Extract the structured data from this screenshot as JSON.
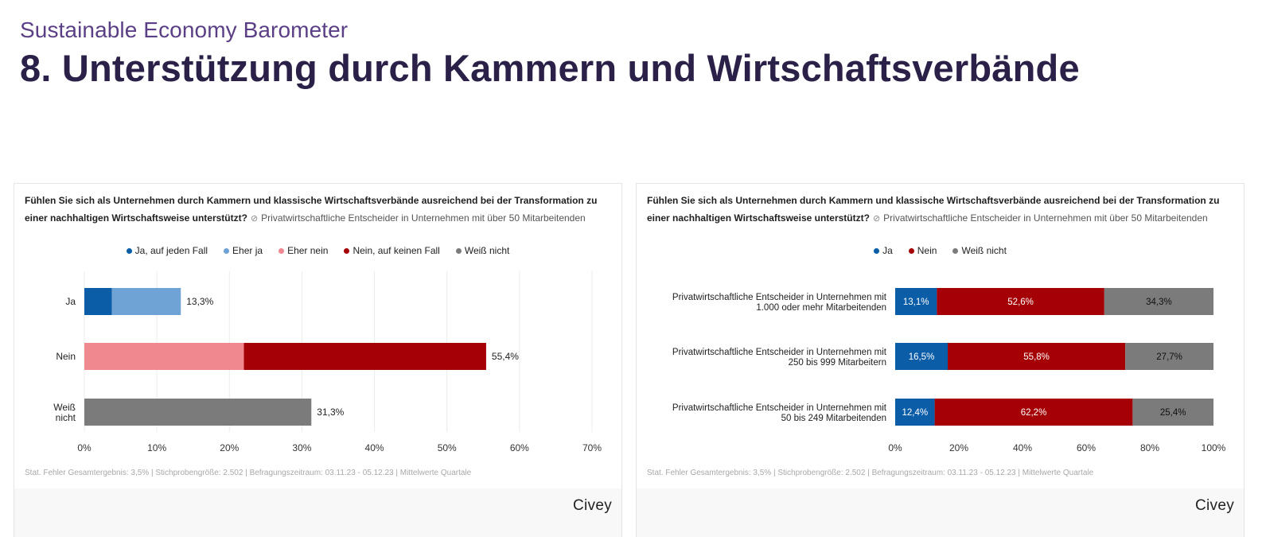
{
  "header": {
    "subtitle": "Sustainable Economy Barometer",
    "title": "8. Unterstützung durch Kammern und Wirtschaftsverbände"
  },
  "cards": [
    {
      "question": "Fühlen Sie sich als Unternehmen durch Kammern und klassische Wirtschaftsverbände ausreichend bei der Transformation zu einer nachhaltigen Wirtschaftsweise unterstützt?",
      "target_group": "Privatwirtschaftliche Entscheider in Unternehmen mit über 50 Mitarbeitenden",
      "footer": "Stat. Fehler Gesamtergebnis: 3,5% | Stichprobengröße: 2.502 | Befragungszeitraum: 03.11.23 - 05.12.23 | Mittelwerte Quartale",
      "brand": "Civey"
    },
    {
      "question": "Fühlen Sie sich als Unternehmen durch Kammern und klassische Wirtschaftsverbände ausreichend bei der Transformation zu einer nachhaltigen Wirtschaftsweise unterstützt?",
      "target_group": "Privatwirtschaftliche Entscheider in Unternehmen mit über 50 Mitarbeitenden",
      "footer": "Stat. Fehler Gesamtergebnis: 3,5% | Stichprobengröße: 2.502 | Befragungszeitraum: 03.11.23 - 05.12.23 | Mittelwerte Quartale",
      "brand": "Civey"
    }
  ],
  "chart_data": [
    {
      "type": "bar",
      "orientation": "horizontal",
      "stacked": true,
      "categories": [
        "Ja",
        "Nein",
        "Weiß nicht"
      ],
      "series": [
        {
          "name": "Ja, auf jeden Fall",
          "color": "#0b5da8",
          "values": [
            3.8,
            0,
            0
          ]
        },
        {
          "name": "Eher ja",
          "color": "#6fa3d6",
          "values": [
            9.5,
            0,
            0
          ]
        },
        {
          "name": "Eher nein",
          "color": "#f0888f",
          "values": [
            0,
            22.0,
            0
          ]
        },
        {
          "name": "Nein, auf keinen Fall",
          "color": "#a50005",
          "values": [
            0,
            33.4,
            0
          ]
        },
        {
          "name": "Weiß nicht",
          "color": "#7b7b7b",
          "values": [
            0,
            0,
            31.3
          ]
        }
      ],
      "totals": [
        "13,3%",
        "55,4%",
        "31,3%"
      ],
      "x_ticks": [
        "0%",
        "10%",
        "20%",
        "30%",
        "40%",
        "50%",
        "60%",
        "70%"
      ],
      "xlim": [
        0,
        70
      ],
      "grid": true,
      "legend": "top-center"
    },
    {
      "type": "bar",
      "orientation": "horizontal",
      "stacked": true,
      "categories": [
        "Privatwirtschaftliche Entscheider in Unternehmen mit 1.000 oder mehr Mitarbeitenden",
        "Privatwirtschaftliche Entscheider in Unternehmen mit 250 bis 999 Mitarbeitern",
        "Privatwirtschaftliche Entscheider in Unternehmen mit 50 bis 249 Mitarbeitenden"
      ],
      "category_lines": [
        [
          "Privatwirtschaftliche Entscheider in Unternehmen mit",
          "1.000 oder mehr Mitarbeitenden"
        ],
        [
          "Privatwirtschaftliche Entscheider in Unternehmen mit",
          "250 bis 999 Mitarbeitern"
        ],
        [
          "Privatwirtschaftliche Entscheider in Unternehmen mit",
          "50 bis 249 Mitarbeitenden"
        ]
      ],
      "series": [
        {
          "name": "Ja",
          "color": "#0b5da8",
          "values": [
            13.1,
            16.5,
            12.4
          ],
          "labels": [
            "13,1%",
            "16,5%",
            "12,4%"
          ]
        },
        {
          "name": "Nein",
          "color": "#a50005",
          "values": [
            52.6,
            55.8,
            62.2
          ],
          "labels": [
            "52,6%",
            "55,8%",
            "62,2%"
          ]
        },
        {
          "name": "Weiß nicht",
          "color": "#7b7b7b",
          "values": [
            34.3,
            27.7,
            25.4
          ],
          "labels": [
            "34,3%",
            "27,7%",
            "25,4%"
          ]
        }
      ],
      "x_ticks": [
        "0%",
        "20%",
        "40%",
        "60%",
        "80%",
        "100%"
      ],
      "xlim": [
        0,
        100
      ],
      "grid": false,
      "legend": "top-center"
    }
  ]
}
